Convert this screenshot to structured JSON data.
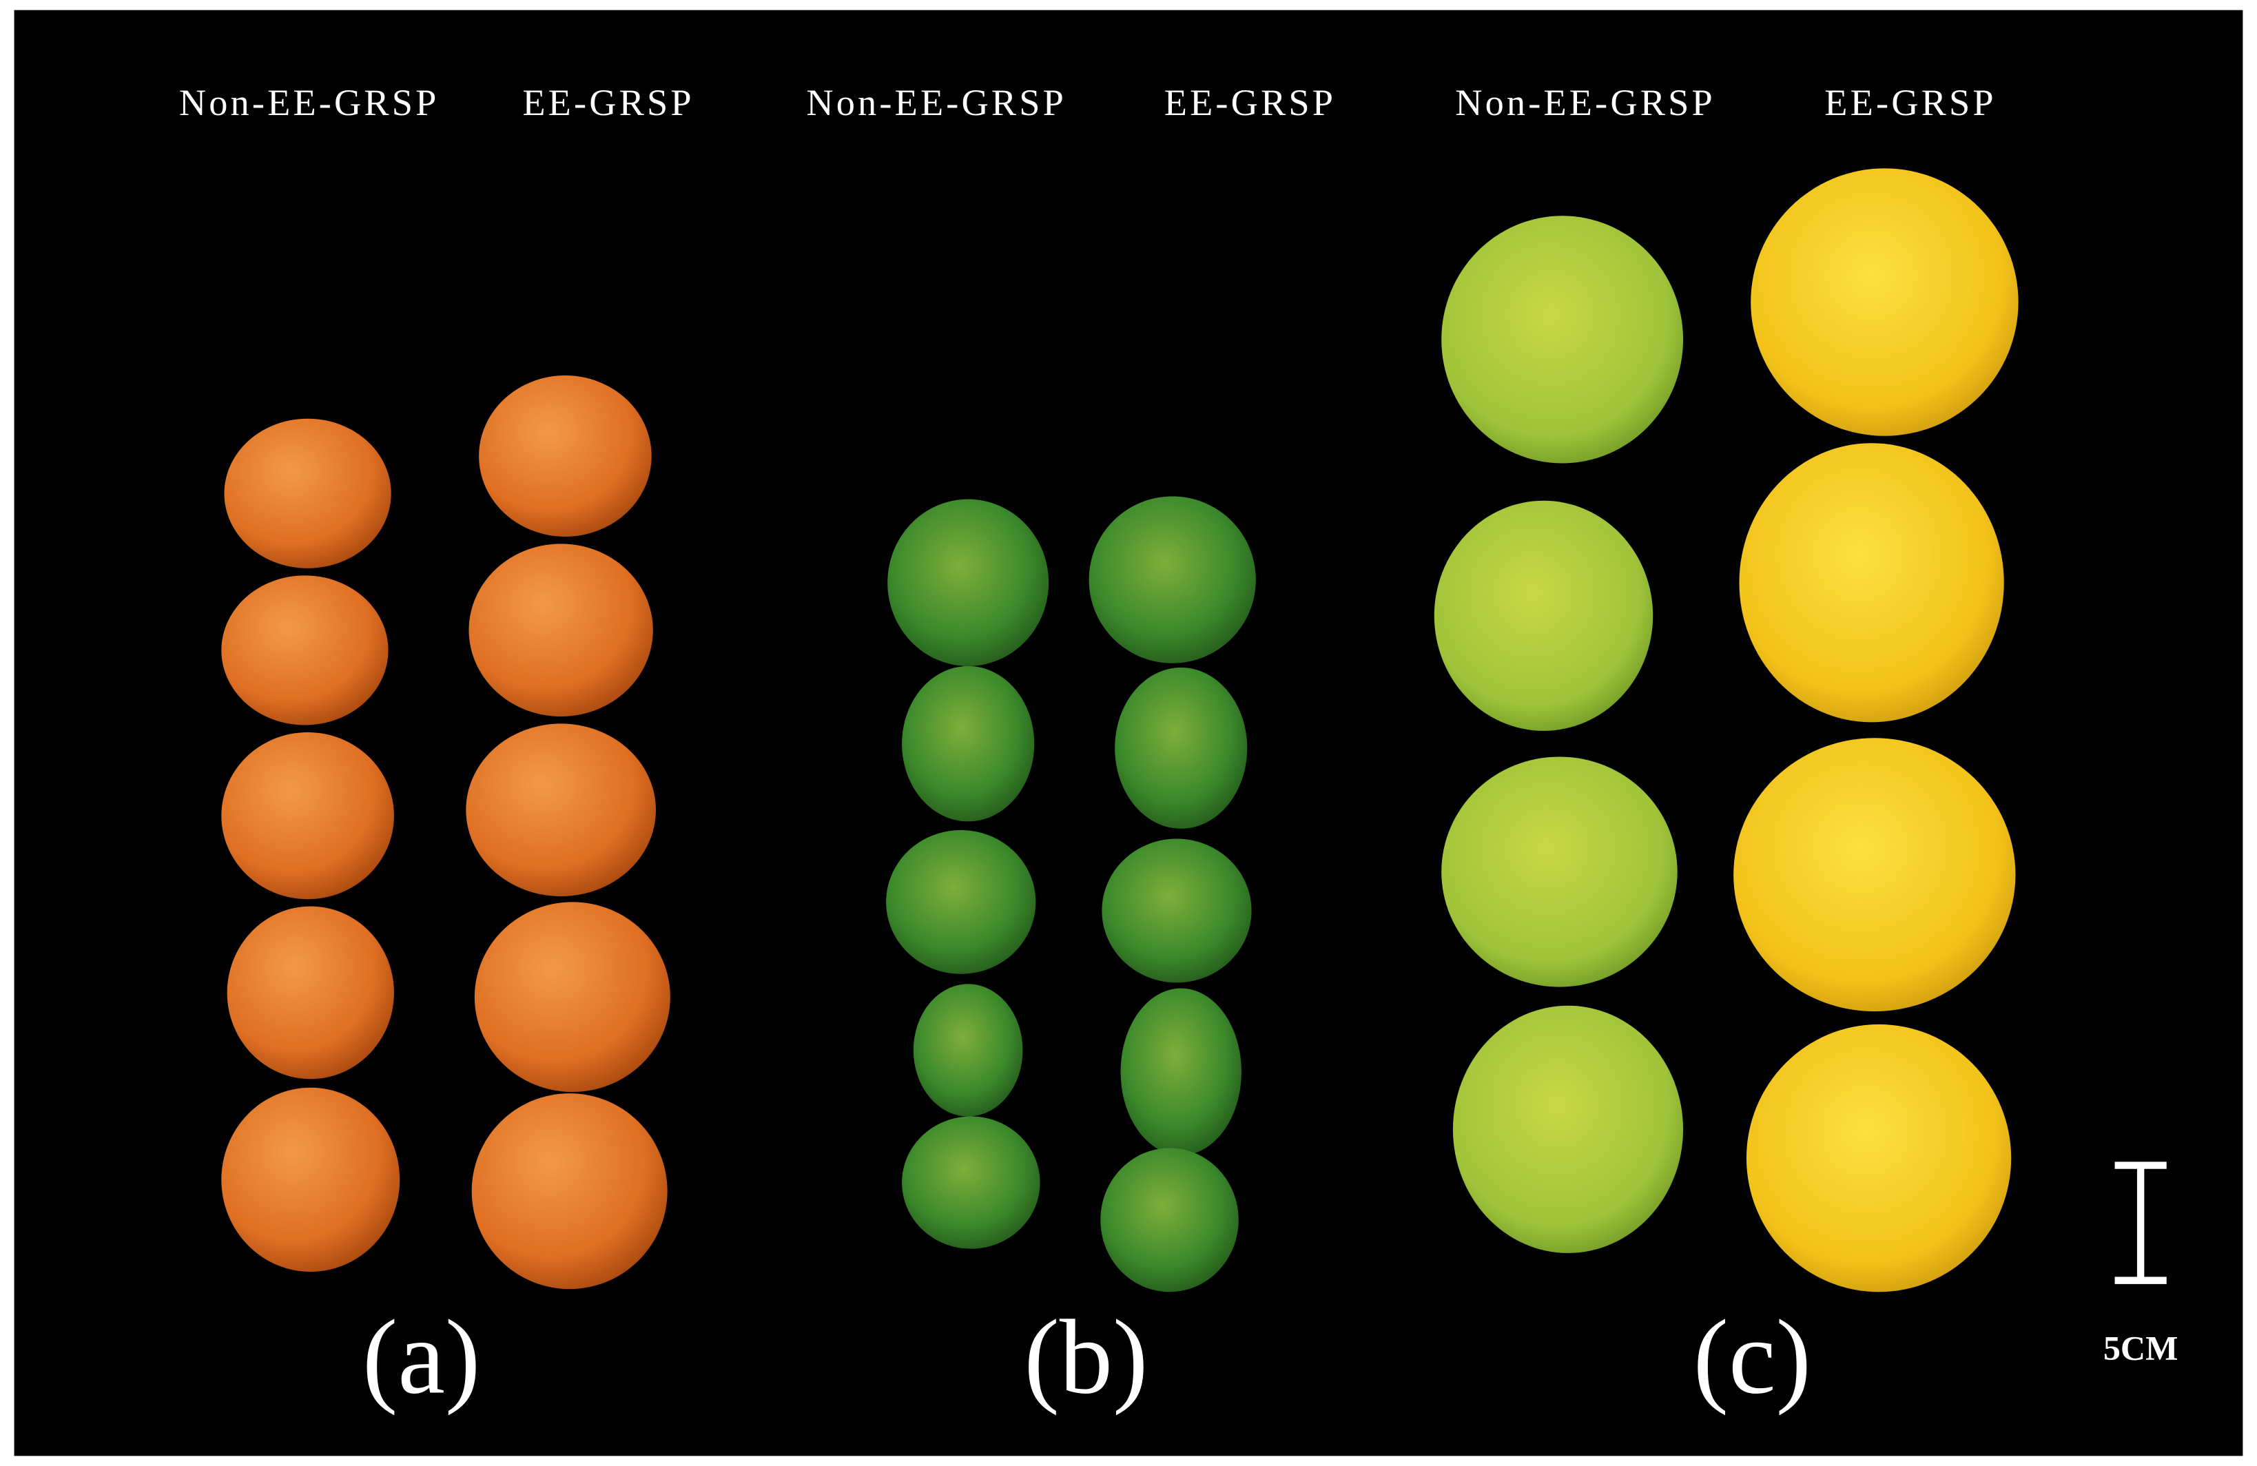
{
  "panels": [
    {
      "label": "(a)",
      "columns": [
        "Non-EE-GRSP",
        "EE-GRSP"
      ]
    },
    {
      "label": "(b)",
      "columns": [
        "Non-EE-GRSP",
        "EE-GRSP"
      ]
    },
    {
      "label": "(c)",
      "columns": [
        "Non-EE-GRSP",
        "EE-GRSP"
      ]
    }
  ],
  "scale_bar": {
    "label": "5CM"
  }
}
